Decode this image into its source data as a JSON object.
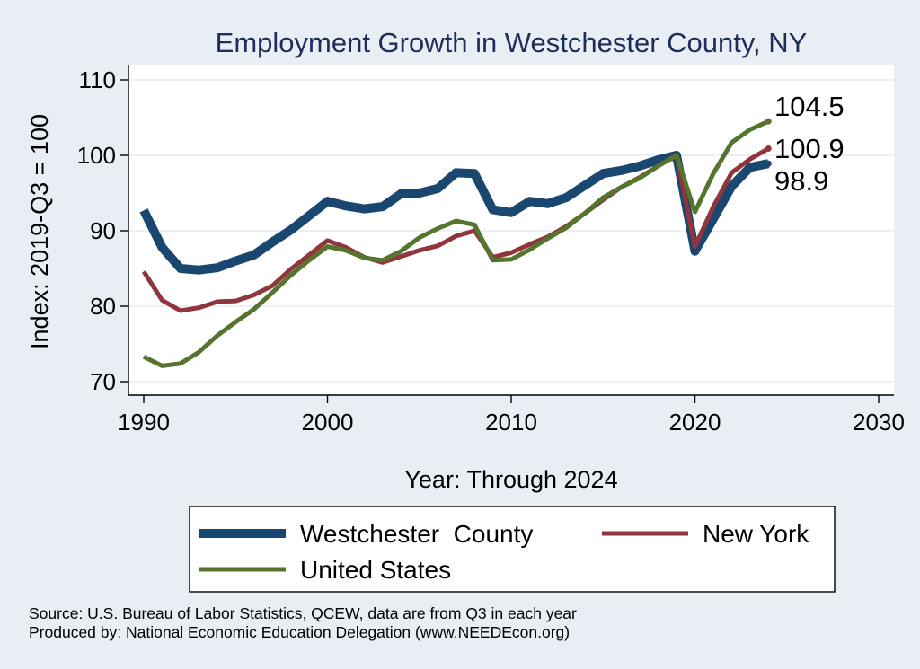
{
  "chart_data": {
    "type": "line",
    "title": "Employment Growth in Westchester County, NY",
    "xlabel": "Year: Through 2024",
    "ylabel": "Index: 2019-Q3 = 100",
    "xlim": [
      1990,
      2030
    ],
    "ylim": [
      68,
      110
    ],
    "xticks": [
      1990,
      2000,
      2010,
      2020,
      2030
    ],
    "yticks": [
      70,
      80,
      90,
      100,
      110
    ],
    "grid": true,
    "x": [
      1990,
      1991,
      1992,
      1993,
      1994,
      1995,
      1996,
      1997,
      1998,
      1999,
      2000,
      2001,
      2002,
      2003,
      2004,
      2005,
      2006,
      2007,
      2008,
      2009,
      2010,
      2011,
      2012,
      2013,
      2014,
      2015,
      2016,
      2017,
      2018,
      2019,
      2020,
      2021,
      2022,
      2023,
      2024
    ],
    "series": [
      {
        "name": "Westchester  County",
        "color": "#1a476f",
        "width": 10,
        "end_label": "98.9",
        "values": [
          92.7,
          87.8,
          85.0,
          84.8,
          85.1,
          86.0,
          86.8,
          88.5,
          90.1,
          92.0,
          93.9,
          93.3,
          92.9,
          93.2,
          94.9,
          95.0,
          95.6,
          97.7,
          97.6,
          92.8,
          92.4,
          93.9,
          93.6,
          94.4,
          96.0,
          97.6,
          98.0,
          98.6,
          99.4,
          100.0,
          87.3,
          91.6,
          95.9,
          98.4,
          98.9
        ]
      },
      {
        "name": "New York",
        "color": "#90353b",
        "width": 5,
        "end_label": "100.9",
        "values": [
          84.6,
          80.8,
          79.4,
          79.8,
          80.6,
          80.7,
          81.5,
          82.7,
          84.9,
          86.8,
          88.7,
          87.8,
          86.5,
          85.8,
          86.6,
          87.4,
          88.0,
          89.3,
          90.0,
          86.5,
          87.1,
          88.2,
          89.2,
          90.6,
          92.3,
          94.1,
          95.8,
          97.1,
          98.6,
          100.0,
          87.9,
          93.2,
          97.7,
          99.5,
          100.9
        ]
      },
      {
        "name": "United States",
        "color": "#55752f",
        "width": 5,
        "end_label": "104.5",
        "values": [
          73.3,
          72.1,
          72.4,
          73.9,
          76.1,
          77.9,
          79.6,
          81.8,
          84.1,
          86.1,
          87.9,
          87.4,
          86.4,
          86.1,
          87.3,
          89.1,
          90.3,
          91.3,
          90.8,
          86.1,
          86.2,
          87.5,
          89.0,
          90.4,
          92.3,
          94.4,
          95.8,
          97.0,
          98.6,
          100.0,
          92.5,
          97.6,
          101.7,
          103.4,
          104.5
        ]
      }
    ],
    "legend": {
      "placement": "bottom"
    }
  },
  "source_text": "Source: U.S. Bureau of Labor Statistics, QCEW, data are from Q3 in each year",
  "producer_text": "Produced by: National Economic Education Delegation (www.NEEDEcon.org)"
}
